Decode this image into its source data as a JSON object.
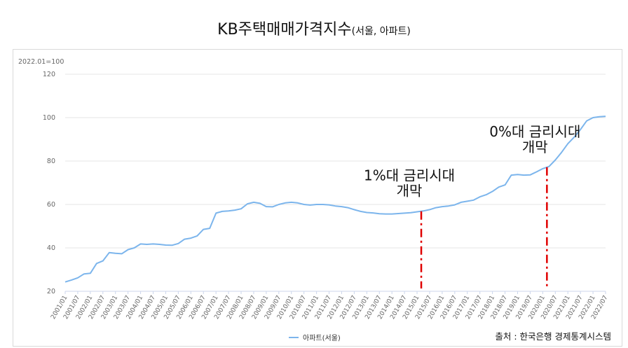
{
  "chart_data": {
    "type": "line",
    "title": "KB주택매매가격지수",
    "subtitle": "(서울, 아파트)",
    "unit_note": "2022.01=100",
    "source": "출처 : 한국은행 경제통계시스템",
    "ylim": [
      20,
      120
    ],
    "y_ticks": [
      20,
      40,
      60,
      80,
      100,
      120
    ],
    "x_range": [
      "2001/01",
      "2022/07"
    ],
    "x_ticks": [
      "2001/01",
      "2001/07",
      "2002/01",
      "2002/07",
      "2003/01",
      "2003/07",
      "2004/01",
      "2004/07",
      "2005/01",
      "2005/07",
      "2006/01",
      "2006/07",
      "2007/01",
      "2007/07",
      "2008/01",
      "2008/07",
      "2009/01",
      "2009/07",
      "2010/01",
      "2010/07",
      "2011/01",
      "2011/07",
      "2012/01",
      "2012/07",
      "2013/01",
      "2013/07",
      "2014/01",
      "2014/07",
      "2015/01",
      "2015/07",
      "2016/01",
      "2016/07",
      "2017/01",
      "2017/07",
      "2018/01",
      "2018/07",
      "2019/01",
      "2019/07",
      "2020/01",
      "2020/07",
      "2021/01",
      "2021/07",
      "2022/01",
      "2022/07"
    ],
    "legend": {
      "position": "bottom-center"
    },
    "series": [
      {
        "name": "아파트(서울)",
        "color": "#7cb5ec",
        "points": [
          [
            "2001/01",
            24.3
          ],
          [
            "2001/04",
            25.2
          ],
          [
            "2001/07",
            26.2
          ],
          [
            "2001/10",
            28.0
          ],
          [
            "2002/01",
            28.3
          ],
          [
            "2002/04",
            32.8
          ],
          [
            "2002/07",
            34.0
          ],
          [
            "2002/10",
            37.8
          ],
          [
            "2003/01",
            37.5
          ],
          [
            "2003/04",
            37.3
          ],
          [
            "2003/07",
            39.2
          ],
          [
            "2003/10",
            40.0
          ],
          [
            "2004/01",
            41.8
          ],
          [
            "2004/04",
            41.6
          ],
          [
            "2004/07",
            41.8
          ],
          [
            "2004/10",
            41.6
          ],
          [
            "2005/01",
            41.3
          ],
          [
            "2005/04",
            41.2
          ],
          [
            "2005/07",
            42.0
          ],
          [
            "2005/10",
            44.0
          ],
          [
            "2006/01",
            44.5
          ],
          [
            "2006/04",
            45.5
          ],
          [
            "2006/07",
            48.5
          ],
          [
            "2006/10",
            49.0
          ],
          [
            "2007/01",
            56.0
          ],
          [
            "2007/04",
            56.8
          ],
          [
            "2007/07",
            57.0
          ],
          [
            "2007/10",
            57.4
          ],
          [
            "2008/01",
            58.0
          ],
          [
            "2008/04",
            60.3
          ],
          [
            "2008/07",
            61.0
          ],
          [
            "2008/10",
            60.5
          ],
          [
            "2009/01",
            59.0
          ],
          [
            "2009/04",
            58.9
          ],
          [
            "2009/07",
            60.0
          ],
          [
            "2009/10",
            60.7
          ],
          [
            "2010/01",
            61.0
          ],
          [
            "2010/04",
            60.7
          ],
          [
            "2010/07",
            60.0
          ],
          [
            "2010/10",
            59.7
          ],
          [
            "2011/01",
            60.0
          ],
          [
            "2011/04",
            60.0
          ],
          [
            "2011/07",
            59.8
          ],
          [
            "2011/10",
            59.3
          ],
          [
            "2012/01",
            59.0
          ],
          [
            "2012/04",
            58.5
          ],
          [
            "2012/07",
            57.6
          ],
          [
            "2012/10",
            56.8
          ],
          [
            "2013/01",
            56.3
          ],
          [
            "2013/04",
            56.1
          ],
          [
            "2013/07",
            55.7
          ],
          [
            "2013/10",
            55.6
          ],
          [
            "2014/01",
            55.6
          ],
          [
            "2014/04",
            55.8
          ],
          [
            "2014/07",
            56.0
          ],
          [
            "2014/10",
            56.2
          ],
          [
            "2015/01",
            56.6
          ],
          [
            "2015/04",
            57.0
          ],
          [
            "2015/07",
            57.6
          ],
          [
            "2015/10",
            58.5
          ],
          [
            "2016/01",
            59.0
          ],
          [
            "2016/04",
            59.3
          ],
          [
            "2016/07",
            59.8
          ],
          [
            "2016/10",
            61.0
          ],
          [
            "2017/01",
            61.5
          ],
          [
            "2017/04",
            62.0
          ],
          [
            "2017/07",
            63.5
          ],
          [
            "2017/10",
            64.5
          ],
          [
            "2018/01",
            66.0
          ],
          [
            "2018/04",
            68.0
          ],
          [
            "2018/07",
            69.0
          ],
          [
            "2018/10",
            73.5
          ],
          [
            "2019/01",
            73.8
          ],
          [
            "2019/04",
            73.5
          ],
          [
            "2019/07",
            73.6
          ],
          [
            "2019/10",
            75.0
          ],
          [
            "2020/01",
            76.5
          ],
          [
            "2020/04",
            77.5
          ],
          [
            "2020/07",
            80.5
          ],
          [
            "2020/10",
            84.0
          ],
          [
            "2021/01",
            88.0
          ],
          [
            "2021/04",
            91.0
          ],
          [
            "2021/07",
            94.5
          ],
          [
            "2021/10",
            98.5
          ],
          [
            "2022/01",
            100.0
          ],
          [
            "2022/04",
            100.4
          ],
          [
            "2022/07",
            100.6
          ]
        ]
      }
    ],
    "annotations": [
      {
        "x": "2015/03",
        "line_lines": [
          "1%대 금리시대",
          "개막"
        ],
        "color": "#e00000",
        "style": "dash-dot"
      },
      {
        "x": "2020/03",
        "line_lines": [
          "0%대 금리시대",
          "개막"
        ],
        "color": "#e00000",
        "style": "dash-dot"
      }
    ]
  }
}
